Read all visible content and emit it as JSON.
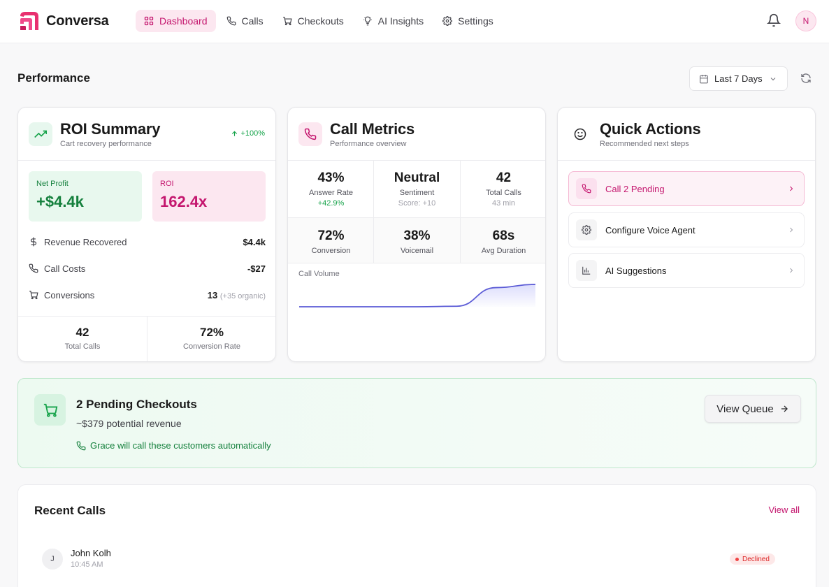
{
  "app": {
    "name": "Conversa",
    "avatar_initial": "N"
  },
  "nav": [
    {
      "label": "Dashboard",
      "icon": "dashboard-icon",
      "active": true
    },
    {
      "label": "Calls",
      "icon": "phone-icon"
    },
    {
      "label": "Checkouts",
      "icon": "cart-icon"
    },
    {
      "label": "AI Insights",
      "icon": "bulb-icon"
    },
    {
      "label": "Settings",
      "icon": "gear-icon"
    }
  ],
  "page": {
    "title": "Performance",
    "date_range": "Last 7 Days"
  },
  "roi": {
    "title": "ROI Summary",
    "subtitle": "Cart recovery performance",
    "delta": "+100%",
    "net_profit_label": "Net Profit",
    "net_profit_value": "+$4.4k",
    "roi_label": "ROI",
    "roi_value": "162.4x",
    "rows": [
      {
        "label": "Revenue Recovered",
        "value": "$4.4k"
      },
      {
        "label": "Call Costs",
        "value": "-$27"
      },
      {
        "label": "Conversions",
        "value": "13",
        "extra": "(+35 organic)"
      }
    ],
    "total_calls_value": "42",
    "total_calls_label": "Total Calls",
    "conversion_rate_value": "72%",
    "conversion_rate_label": "Conversion Rate"
  },
  "metrics": {
    "title": "Call Metrics",
    "subtitle": "Performance overview",
    "cells": [
      {
        "value": "43%",
        "label": "Answer Rate",
        "sub": "+42.9%"
      },
      {
        "value": "Neutral",
        "label": "Sentiment",
        "sub": "Score: +10"
      },
      {
        "value": "42",
        "label": "Total Calls",
        "sub": "43 min"
      },
      {
        "value": "72%",
        "label": "Conversion"
      },
      {
        "value": "38%",
        "label": "Voicemail"
      },
      {
        "value": "68s",
        "label": "Avg Duration"
      }
    ],
    "chart_label": "Call Volume"
  },
  "chart_data": {
    "type": "area",
    "title": "Call Volume",
    "x": [
      1,
      2,
      3,
      4,
      5,
      6,
      7
    ],
    "values": [
      0,
      0,
      0,
      0,
      1,
      36,
      42
    ],
    "ylim": [
      0,
      42
    ],
    "color": "#5b5bd6"
  },
  "quick_actions": {
    "title": "Quick Actions",
    "subtitle": "Recommended next steps",
    "items": [
      {
        "label": "Call 2 Pending",
        "icon": "phone-icon"
      },
      {
        "label": "Configure Voice Agent",
        "icon": "gear-icon"
      },
      {
        "label": "AI Suggestions",
        "icon": "bar-chart-icon"
      }
    ]
  },
  "pending": {
    "title": "2 Pending Checkouts",
    "revenue": "~$379 potential revenue",
    "note": "Grace will call these customers automatically",
    "button": "View Queue"
  },
  "recent": {
    "title": "Recent Calls",
    "view_all": "View all",
    "calls": [
      {
        "initial": "J",
        "name": "John Kolh",
        "time": "10:45 AM",
        "status": "Declined"
      }
    ]
  },
  "colors": {
    "accent": "#c4166e",
    "success": "#16a34a",
    "danger": "#dc2626",
    "chart": "#5b5bd6"
  }
}
